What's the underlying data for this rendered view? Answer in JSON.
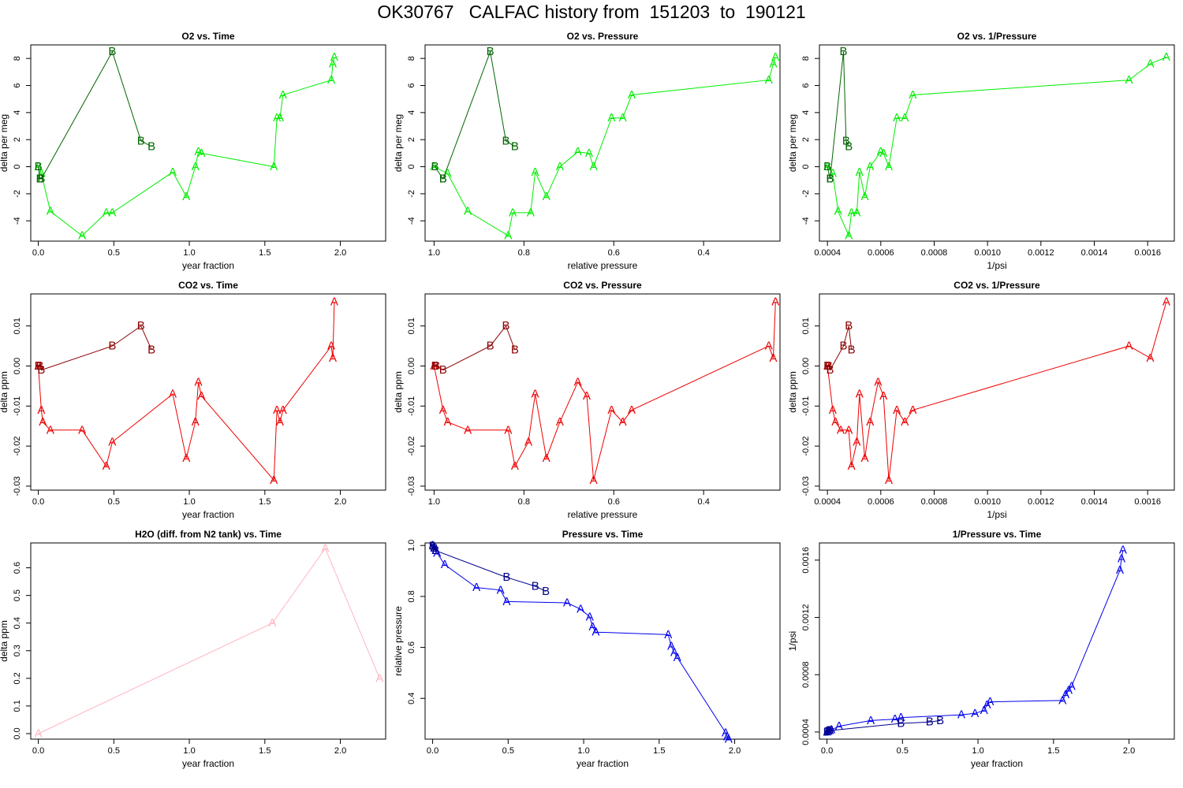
{
  "title": "OK30767   CALFAC history from  151203  to  190121",
  "chart_data": [
    {
      "type": "line",
      "title": "O2 vs. Time",
      "xlabel": "year fraction",
      "ylabel": "delta per meg",
      "xlim": [
        -0.05,
        2.3
      ],
      "ylim": [
        -5.5,
        9.0
      ],
      "xticks": [
        0.0,
        0.5,
        1.0,
        1.5,
        2.0
      ],
      "xtick_labels": [
        "0.0",
        "0.5",
        "1.0",
        "1.5",
        "2.0"
      ],
      "yticks": [
        -4,
        -2,
        0,
        2,
        4,
        6,
        8
      ],
      "ytick_labels": [
        "-4",
        "-2",
        "0",
        "2",
        "4",
        "6",
        "8"
      ],
      "series": [
        {
          "name": "A",
          "color": "#00ee00",
          "x": [
            0.0,
            0.02,
            0.08,
            0.29,
            0.45,
            0.49,
            0.89,
            0.98,
            1.04,
            1.06,
            1.08,
            1.56,
            1.58,
            1.6,
            1.62,
            1.94,
            1.95,
            1.96
          ],
          "y": [
            0.0,
            -0.5,
            -3.3,
            -5.1,
            -3.4,
            -3.4,
            -0.4,
            -2.2,
            0.0,
            1.1,
            1.0,
            0.0,
            3.6,
            3.6,
            5.3,
            6.4,
            7.6,
            8.1
          ]
        },
        {
          "name": "B",
          "color": "#006400",
          "x": [
            0.0,
            0.01,
            0.02,
            0.49,
            0.68,
            0.75
          ],
          "y": [
            0.0,
            -0.9,
            -0.9,
            8.5,
            1.9,
            1.5
          ]
        }
      ]
    },
    {
      "type": "line",
      "title": "O2 vs. Pressure",
      "xlabel": "relative pressure",
      "ylabel": "delta per meg",
      "xlim": [
        1.02,
        0.23
      ],
      "ylim": [
        -5.5,
        9.0
      ],
      "xticks": [
        1.0,
        0.8,
        0.6,
        0.4
      ],
      "xtick_labels": [
        "1.0",
        "0.8",
        "0.6",
        "0.4"
      ],
      "yticks": [
        -4,
        -2,
        0,
        2,
        4,
        6,
        8
      ],
      "ytick_labels": [
        "-4",
        "-2",
        "0",
        "2",
        "4",
        "6",
        "8"
      ],
      "series": [
        {
          "name": "A",
          "color": "#00ee00",
          "x": [
            1.0,
            0.97,
            0.925,
            0.835,
            0.825,
            0.785,
            0.775,
            0.75,
            0.72,
            0.68,
            0.655,
            0.645,
            0.605,
            0.58,
            0.56,
            0.255,
            0.245,
            0.24
          ],
          "y": [
            0.0,
            -0.5,
            -3.3,
            -5.1,
            -3.4,
            -3.4,
            -0.4,
            -2.2,
            0.0,
            1.1,
            1.0,
            0.0,
            3.6,
            3.6,
            5.3,
            6.4,
            7.6,
            8.1
          ]
        },
        {
          "name": "B",
          "color": "#006400",
          "x": [
            0.998,
            0.98,
            0.98,
            0.875,
            0.84,
            0.82
          ],
          "y": [
            0.0,
            -0.9,
            -0.9,
            8.5,
            1.9,
            1.5
          ]
        }
      ]
    },
    {
      "type": "line",
      "title": "O2 vs. 1/Pressure",
      "xlabel": "1/psi",
      "ylabel": "delta per meg",
      "xlim": [
        0.00037,
        0.0017
      ],
      "ylim": [
        -5.5,
        9.0
      ],
      "xticks": [
        0.0004,
        0.0006,
        0.0008,
        0.001,
        0.0012,
        0.0014,
        0.0016
      ],
      "xtick_labels": [
        "0.0004",
        "0.0006",
        "0.0008",
        "0.0010",
        "0.0012",
        "0.0014",
        "0.0016"
      ],
      "yticks": [
        -4,
        -2,
        0,
        2,
        4,
        6,
        8
      ],
      "ytick_labels": [
        "-4",
        "-2",
        "0",
        "2",
        "4",
        "6",
        "8"
      ],
      "series": [
        {
          "name": "A",
          "color": "#00ee00",
          "x": [
            0.0004,
            0.00042,
            0.00044,
            0.00048,
            0.00049,
            0.00051,
            0.00052,
            0.00054,
            0.00056,
            0.0006,
            0.00061,
            0.00063,
            0.00066,
            0.00069,
            0.00072,
            0.00153,
            0.00161,
            0.00167
          ],
          "y": [
            0.0,
            -0.5,
            -3.3,
            -5.1,
            -3.4,
            -3.4,
            -0.4,
            -2.2,
            0.0,
            1.1,
            1.0,
            0.0,
            3.6,
            3.6,
            5.3,
            6.4,
            7.6,
            8.1
          ]
        },
        {
          "name": "B",
          "color": "#006400",
          "x": [
            0.0004,
            0.00041,
            0.00041,
            0.00046,
            0.00047,
            0.00048
          ],
          "y": [
            0.0,
            -0.9,
            -0.9,
            8.5,
            1.9,
            1.5
          ]
        }
      ]
    },
    {
      "type": "line",
      "title": "CO2 vs. Time",
      "xlabel": "year fraction",
      "ylabel": "delta ppm",
      "xlim": [
        -0.05,
        2.3
      ],
      "ylim": [
        -0.031,
        0.018
      ],
      "xticks": [
        0.0,
        0.5,
        1.0,
        1.5,
        2.0
      ],
      "xtick_labels": [
        "0.0",
        "0.5",
        "1.0",
        "1.5",
        "2.0"
      ],
      "yticks": [
        -0.03,
        -0.02,
        -0.01,
        0.0,
        0.01
      ],
      "ytick_labels": [
        "-0.03",
        "-0.02",
        "-0.01",
        "0.00",
        "0.01"
      ],
      "series": [
        {
          "name": "A",
          "color": "#ee0000",
          "x": [
            0.0,
            0.02,
            0.03,
            0.08,
            0.29,
            0.45,
            0.49,
            0.89,
            0.98,
            1.04,
            1.06,
            1.08,
            1.56,
            1.58,
            1.6,
            1.62,
            1.94,
            1.95,
            1.96
          ],
          "y": [
            0.0,
            -0.011,
            -0.014,
            -0.016,
            -0.016,
            -0.025,
            -0.019,
            -0.007,
            -0.023,
            -0.014,
            -0.004,
            -0.0075,
            -0.0285,
            -0.011,
            -0.014,
            -0.011,
            0.005,
            0.002,
            0.016
          ]
        },
        {
          "name": "B",
          "color": "#8b0000",
          "x": [
            0.0,
            0.01,
            0.02,
            0.49,
            0.68,
            0.75
          ],
          "y": [
            0.0,
            0.0,
            -0.001,
            0.005,
            0.01,
            0.004
          ]
        }
      ]
    },
    {
      "type": "line",
      "title": "CO2 vs. Pressure",
      "xlabel": "relative pressure",
      "ylabel": "delta ppm",
      "xlim": [
        1.02,
        0.23
      ],
      "ylim": [
        -0.031,
        0.018
      ],
      "xticks": [
        1.0,
        0.8,
        0.6,
        0.4
      ],
      "xtick_labels": [
        "1.0",
        "0.8",
        "0.6",
        "0.4"
      ],
      "yticks": [
        -0.03,
        -0.02,
        -0.01,
        0.0,
        0.01
      ],
      "ytick_labels": [
        "-0.03",
        "-0.02",
        "-0.01",
        "0.00",
        "0.01"
      ],
      "series": [
        {
          "name": "A",
          "color": "#ee0000",
          "x": [
            1.0,
            0.98,
            0.97,
            0.925,
            0.835,
            0.82,
            0.79,
            0.775,
            0.75,
            0.72,
            0.68,
            0.66,
            0.645,
            0.605,
            0.58,
            0.56,
            0.255,
            0.245,
            0.24
          ],
          "y": [
            0.0,
            -0.011,
            -0.014,
            -0.016,
            -0.016,
            -0.025,
            -0.019,
            -0.007,
            -0.023,
            -0.014,
            -0.004,
            -0.0075,
            -0.0285,
            -0.011,
            -0.014,
            -0.011,
            0.005,
            0.002,
            0.016
          ]
        },
        {
          "name": "B",
          "color": "#8b0000",
          "x": [
            0.998,
            0.995,
            0.98,
            0.875,
            0.84,
            0.82
          ],
          "y": [
            0.0,
            0.0,
            -0.001,
            0.005,
            0.01,
            0.004
          ]
        }
      ]
    },
    {
      "type": "line",
      "title": "CO2 vs. 1/Pressure",
      "xlabel": "1/psi",
      "ylabel": "delta ppm",
      "xlim": [
        0.00037,
        0.0017
      ],
      "ylim": [
        -0.031,
        0.018
      ],
      "xticks": [
        0.0004,
        0.0006,
        0.0008,
        0.001,
        0.0012,
        0.0014,
        0.0016
      ],
      "xtick_labels": [
        "0.0004",
        "0.0006",
        "0.0008",
        "0.0010",
        "0.0012",
        "0.0014",
        "0.0016"
      ],
      "yticks": [
        -0.03,
        -0.02,
        -0.01,
        0.0,
        0.01
      ],
      "ytick_labels": [
        "-0.03",
        "-0.02",
        "-0.01",
        "0.00",
        "0.01"
      ],
      "series": [
        {
          "name": "A",
          "color": "#ee0000",
          "x": [
            0.0004,
            0.00042,
            0.00043,
            0.00045,
            0.00048,
            0.00049,
            0.00051,
            0.00052,
            0.00054,
            0.00056,
            0.00059,
            0.00061,
            0.00063,
            0.00066,
            0.00069,
            0.00072,
            0.00153,
            0.00161,
            0.00167
          ],
          "y": [
            0.0,
            -0.011,
            -0.014,
            -0.016,
            -0.016,
            -0.025,
            -0.019,
            -0.007,
            -0.023,
            -0.014,
            -0.004,
            -0.0075,
            -0.0285,
            -0.011,
            -0.014,
            -0.011,
            0.005,
            0.002,
            0.016
          ]
        },
        {
          "name": "B",
          "color": "#8b0000",
          "x": [
            0.0004,
            0.000405,
            0.00041,
            0.00046,
            0.00048,
            0.00049
          ],
          "y": [
            0.0,
            0.0,
            -0.001,
            0.005,
            0.01,
            0.004
          ]
        }
      ]
    },
    {
      "type": "line",
      "title": "H2O (diff. from N2 tank) vs. Time",
      "xlabel": "year fraction",
      "ylabel": "delta ppm",
      "xlim": [
        -0.05,
        2.3
      ],
      "ylim": [
        -0.02,
        0.69
      ],
      "xticks": [
        0.0,
        0.5,
        1.0,
        1.5,
        2.0
      ],
      "xtick_labels": [
        "0.0",
        "0.5",
        "1.0",
        "1.5",
        "2.0"
      ],
      "yticks": [
        0.0,
        0.1,
        0.2,
        0.3,
        0.4,
        0.5,
        0.6
      ],
      "ytick_labels": [
        "0.0",
        "0.1",
        "0.2",
        "0.3",
        "0.4",
        "0.5",
        "0.6"
      ],
      "series": [
        {
          "name": "A",
          "color": "#ffb6c1",
          "x": [
            0.0,
            1.55,
            1.9,
            2.26
          ],
          "y": [
            0.0,
            0.4,
            0.67,
            0.2
          ]
        }
      ]
    },
    {
      "type": "line",
      "title": "Pressure vs. Time",
      "xlabel": "year fraction",
      "ylabel": "relative pressure",
      "xlim": [
        -0.05,
        2.3
      ],
      "ylim": [
        0.24,
        1.01
      ],
      "xticks": [
        0.0,
        0.5,
        1.0,
        1.5,
        2.0
      ],
      "xtick_labels": [
        "0.0",
        "0.5",
        "1.0",
        "1.5",
        "2.0"
      ],
      "yticks": [
        0.4,
        0.6,
        0.8,
        1.0
      ],
      "ytick_labels": [
        "0.4",
        "0.6",
        "0.8",
        "1.0"
      ],
      "series": [
        {
          "name": "A",
          "color": "#0000ee",
          "x": [
            0.0,
            0.01,
            0.02,
            0.03,
            0.08,
            0.29,
            0.45,
            0.49,
            0.89,
            0.98,
            1.04,
            1.06,
            1.08,
            1.56,
            1.58,
            1.6,
            1.62,
            1.94,
            1.95,
            1.96
          ],
          "y": [
            1.0,
            0.99,
            0.98,
            0.97,
            0.925,
            0.835,
            0.825,
            0.78,
            0.775,
            0.75,
            0.72,
            0.68,
            0.66,
            0.65,
            0.605,
            0.58,
            0.56,
            0.265,
            0.25,
            0.24
          ]
        },
        {
          "name": "B",
          "color": "#00008b",
          "x": [
            0.0,
            0.01,
            0.02,
            0.49,
            0.68,
            0.75
          ],
          "y": [
            0.998,
            0.99,
            0.98,
            0.875,
            0.84,
            0.82
          ]
        }
      ]
    },
    {
      "type": "line",
      "title": "1/Pressure vs. Time",
      "xlabel": "year fraction",
      "ylabel": "1/psi",
      "xlim": [
        -0.05,
        2.3
      ],
      "ylim": [
        0.00035,
        0.00172
      ],
      "xticks": [
        0.0,
        0.5,
        1.0,
        1.5,
        2.0
      ],
      "xtick_labels": [
        "0.0",
        "0.5",
        "1.0",
        "1.5",
        "2.0"
      ],
      "yticks": [
        0.0004,
        0.0008,
        0.0012,
        0.0016
      ],
      "ytick_labels": [
        "0.0004",
        "0.0008",
        "0.0012",
        "0.0016"
      ],
      "series": [
        {
          "name": "A",
          "color": "#0000ee",
          "x": [
            0.0,
            0.01,
            0.02,
            0.03,
            0.08,
            0.29,
            0.45,
            0.49,
            0.89,
            0.98,
            1.04,
            1.06,
            1.08,
            1.56,
            1.58,
            1.6,
            1.62,
            1.94,
            1.95,
            1.96
          ],
          "y": [
            0.0004,
            0.000405,
            0.00041,
            0.000415,
            0.00044,
            0.00048,
            0.00049,
            0.0005,
            0.00052,
            0.00053,
            0.00055,
            0.00059,
            0.00061,
            0.00062,
            0.00066,
            0.00069,
            0.00072,
            0.00153,
            0.00161,
            0.00167
          ]
        },
        {
          "name": "B",
          "color": "#00008b",
          "x": [
            0.0,
            0.01,
            0.02,
            0.49,
            0.68,
            0.75
          ],
          "y": [
            0.0004,
            0.000405,
            0.00041,
            0.00046,
            0.00047,
            0.00048
          ]
        }
      ]
    }
  ]
}
